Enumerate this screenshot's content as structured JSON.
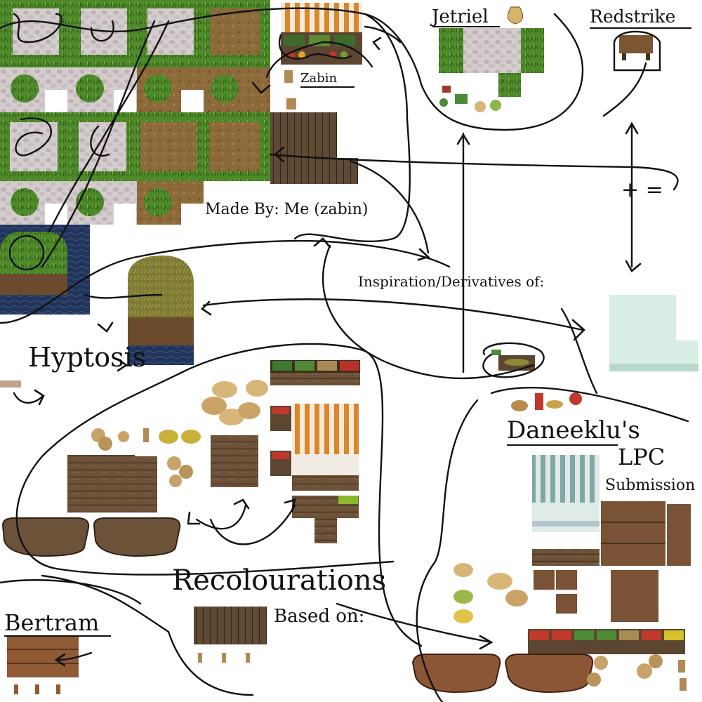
{
  "labels": {
    "jetriel": "Jetriel",
    "redstrike": "Redstrike",
    "zabin_tag": "Zabin",
    "made_by": "Made By: Me (zabin)",
    "inspiration": "Inspiration/Derivatives of:",
    "plus_equals": "+ =",
    "hyptosis": "Hyptosis",
    "daneeklus": "Daneeklu's",
    "lpc": "LPC",
    "submission": "Submission",
    "recolourations": "Recolourations",
    "based_on": "Based on:",
    "bertram": "Bertram"
  },
  "colors": {
    "grass": "#4e8a2a",
    "grass_dark": "#2f5e16",
    "stone": "#cfc7c9",
    "dirt": "#8d6a3a",
    "wood": "#6b5238",
    "wood_dark": "#3f2e1e",
    "water": "#22345a",
    "awning_orange": "#d9862c",
    "awning_teal": "#8fb8b4",
    "sack": "#d8b677",
    "ink": "#111111"
  }
}
